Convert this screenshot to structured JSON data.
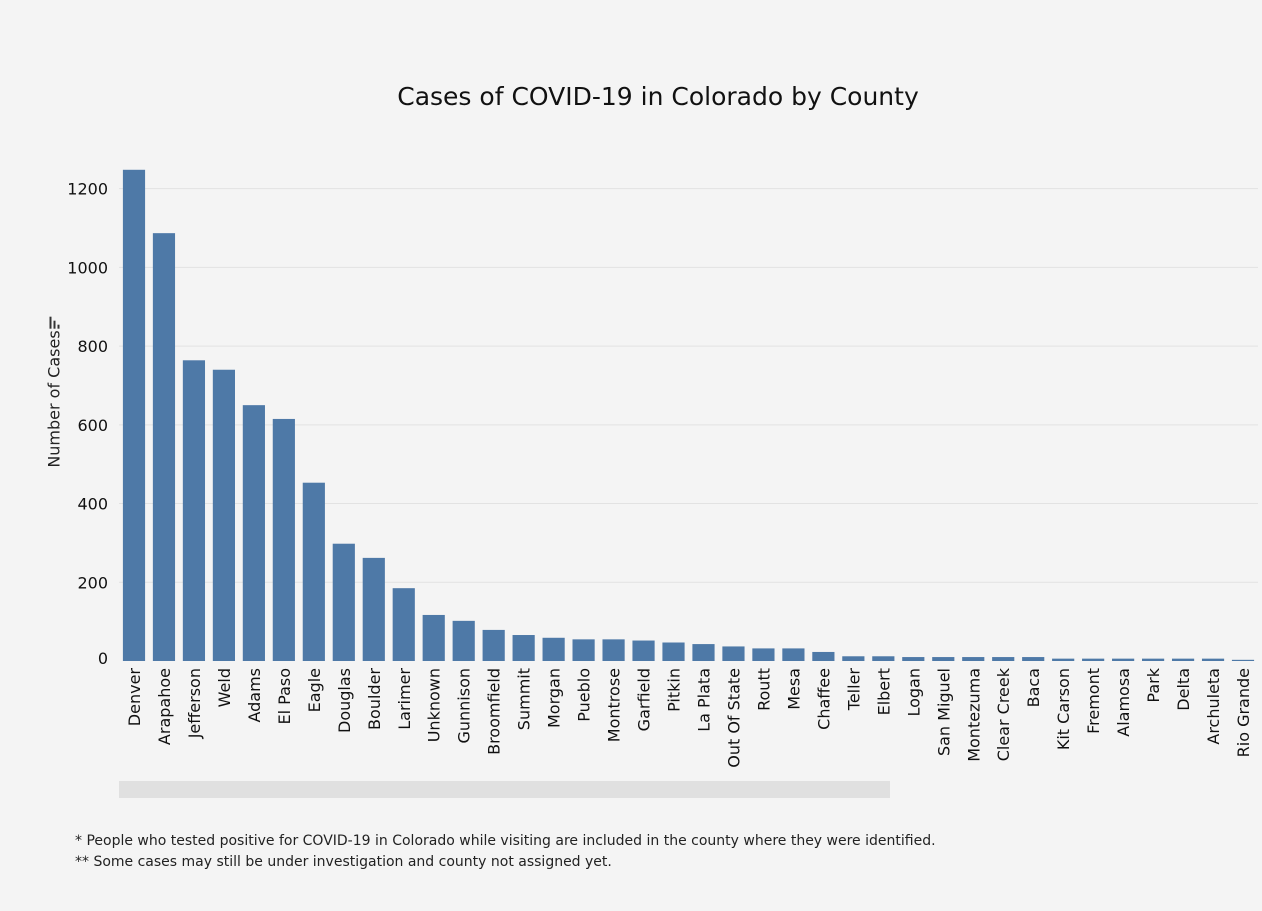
{
  "chart_data": {
    "type": "bar",
    "title": "Cases of COVID-19 in Colorado by County",
    "ylabel": "Number of Cases",
    "xlabel": "",
    "ylim": [
      0,
      1250
    ],
    "yticks": [
      0,
      200,
      400,
      600,
      800,
      1000,
      1200
    ],
    "grid": true,
    "bar_color": "#4e79a7",
    "categories": [
      "Denver",
      "Arapahoe",
      "Jefferson",
      "Weld",
      "Adams",
      "El Paso",
      "Eagle",
      "Douglas",
      "Boulder",
      "Larimer",
      "Unknown",
      "Gunnison",
      "Broomfield",
      "Summit",
      "Morgan",
      "Pueblo",
      "Montrose",
      "Garfield",
      "Pitkin",
      "La Plata",
      "Out Of State",
      "Routt",
      "Mesa",
      "Chaffee",
      "Teller",
      "Elbert",
      "Logan",
      "San Miguel",
      "Montezuma",
      "Clear Creek",
      "Baca",
      "Kit Carson",
      "Fremont",
      "Alamosa",
      "Park",
      "Delta",
      "Archuleta",
      "Rio Grande"
    ],
    "values": [
      1248,
      1087,
      764,
      740,
      650,
      615,
      453,
      298,
      262,
      185,
      117,
      102,
      79,
      66,
      59,
      55,
      55,
      52,
      47,
      43,
      37,
      32,
      32,
      23,
      12,
      12,
      10,
      10,
      10,
      10,
      10,
      6,
      6,
      6,
      6,
      6,
      6,
      3
    ]
  },
  "icons": {
    "sort": "sort-descending-icon"
  },
  "footnotes": [
    "* People who tested positive for COVID-19 in Colorado while visiting are included in the county where they were identified.",
    "** Some cases may still be under investigation and county not assigned yet."
  ]
}
